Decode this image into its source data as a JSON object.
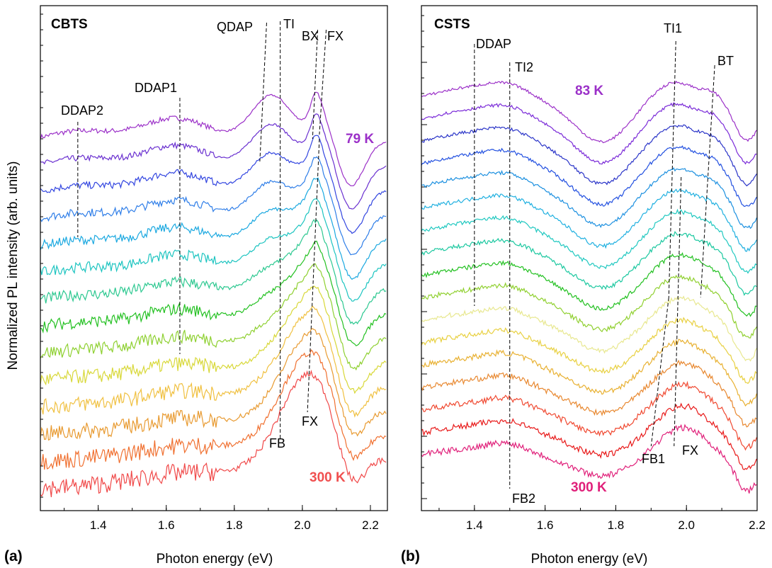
{
  "figure": {
    "ylabel": "Normalized PL intensity (arb. units)",
    "xlabel": "Photon energy (eV)"
  },
  "chart_data": [
    {
      "type": "line",
      "panel": "(a)",
      "sample": "CBTS",
      "xlabel": "Photon energy (eV)",
      "ylabel": "Normalized PL intensity (arb. units)",
      "xlim": [
        1.23,
        2.25
      ],
      "xticks": [
        "1.4",
        "1.6",
        "1.8",
        "2.0",
        "2.2"
      ],
      "y_scale": "log (stacked, offset)",
      "temp_top": "79 K",
      "temp_bottom": "300 K",
      "temp_top_color": "#9b30c8",
      "temp_bottom_color": "#f05050",
      "n_curves": 14,
      "peak_labels": [
        "DDAP2",
        "DDAP1",
        "QDAP",
        "TI",
        "BX",
        "FX",
        "FB",
        "FX"
      ],
      "peaks_eV": {
        "DDAP2": 1.34,
        "DDAP1": 1.63,
        "QDAP": 1.88,
        "TI": 1.93,
        "BX": 2.04,
        "FX_top": 2.06,
        "FB": 1.93,
        "FX_bottom": 2.02
      },
      "series_peak_positions_eV": [
        2.06,
        2.06,
        2.055,
        2.055,
        2.05,
        2.05,
        2.045,
        2.045,
        2.04,
        2.035,
        2.03,
        2.03,
        2.025,
        2.02
      ]
    },
    {
      "type": "line",
      "panel": "(b)",
      "sample": "CSTS",
      "xlabel": "Photon energy (eV)",
      "xlim": [
        1.25,
        2.2
      ],
      "xticks": [
        "1.4",
        "1.6",
        "1.8",
        "2.0",
        "2.2"
      ],
      "y_scale": "log (stacked, offset)",
      "temp_top": "83 K",
      "temp_bottom": "300 K",
      "temp_top_color": "#9b30c8",
      "temp_bottom_color": "#e0207a",
      "n_curves": 17,
      "peak_labels": [
        "DDAP",
        "TI2",
        "TI1",
        "BT",
        "FB1",
        "FX",
        "FB2"
      ],
      "peaks_eV": {
        "DDAP": 1.4,
        "TI2": 1.5,
        "TI1": 1.97,
        "BT": 2.08,
        "FB1": 1.9,
        "FX": 1.98,
        "FB2": 1.5
      }
    }
  ],
  "panels": {
    "a": {
      "letter": "(a)",
      "sample": "CBTS",
      "temp_top": "79 K",
      "temp_bottom": "300 K",
      "labels": {
        "ddap2": "DDAP2",
        "ddap1": "DDAP1",
        "qdap": "QDAP",
        "ti": "TI",
        "bx": "BX",
        "fx_top": "FX",
        "fb": "FB",
        "fx_bottom": "FX"
      },
      "ticks": [
        "1.4",
        "1.6",
        "1.8",
        "2.0",
        "2.2"
      ]
    },
    "b": {
      "letter": "(b)",
      "sample": "CSTS",
      "temp_top": "83 K",
      "temp_bottom": "300 K",
      "labels": {
        "ddap": "DDAP",
        "ti2": "TI2",
        "ti1": "TI1",
        "bt": "BT",
        "fb1": "FB1",
        "fx": "FX",
        "fb2": "FB2"
      },
      "ticks": [
        "1.4",
        "1.6",
        "1.8",
        "2.0",
        "2.2"
      ]
    }
  },
  "colors": {
    "a_series": [
      "#9b30c8",
      "#6a30d0",
      "#3346e0",
      "#2f7ee8",
      "#1aa8e0",
      "#1cc4c0",
      "#2cc890",
      "#22c020",
      "#8ed030",
      "#d8d838",
      "#f0c040",
      "#e89a30",
      "#f07030",
      "#f04848"
    ],
    "b_series": [
      "#9b30c8",
      "#7a2ad8",
      "#2a34c8",
      "#2250e0",
      "#1c90e0",
      "#20b0e0",
      "#20c8c0",
      "#1cc8a0",
      "#22c020",
      "#90d030",
      "#e8e890",
      "#e8d040",
      "#e8b030",
      "#e88830",
      "#f04830",
      "#e81818",
      "#e0207a"
    ]
  }
}
